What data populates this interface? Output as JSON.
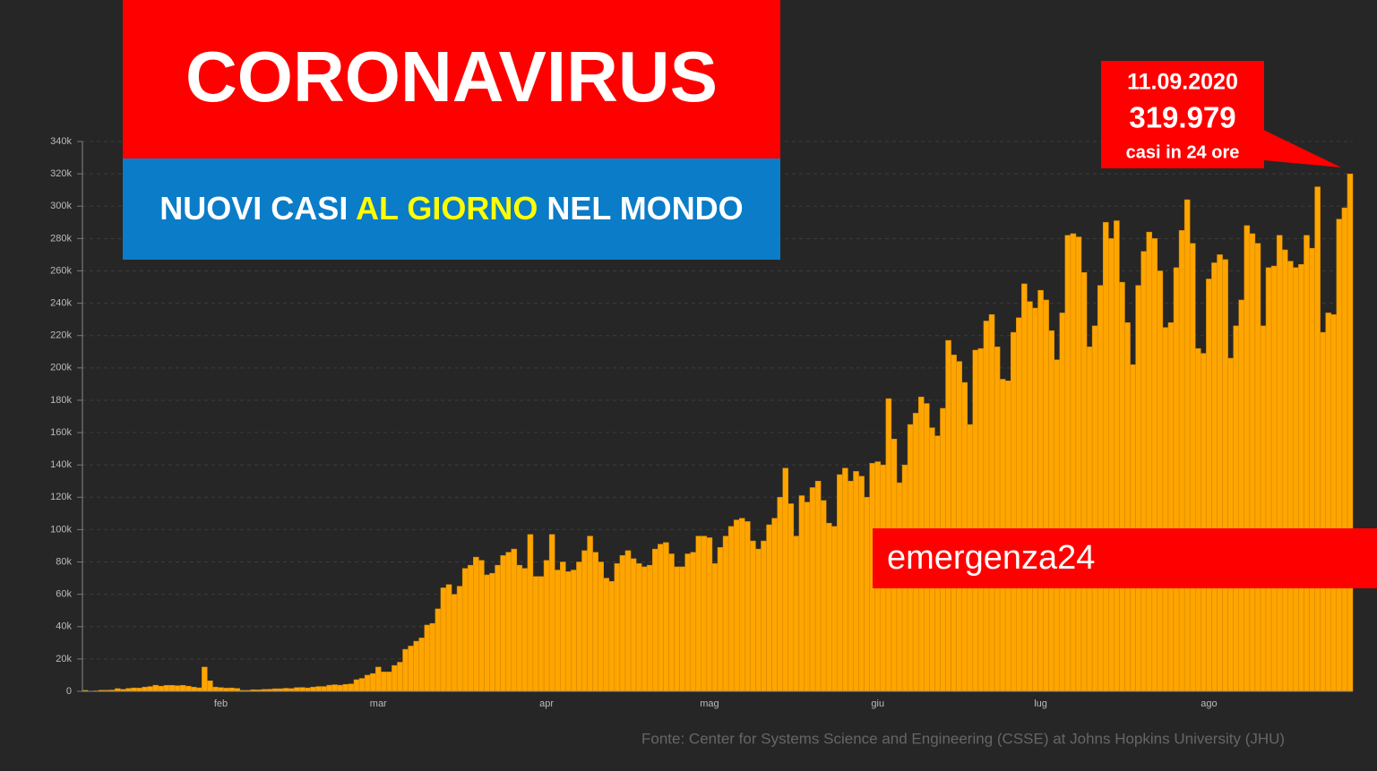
{
  "chart_data": {
    "type": "bar",
    "title": "CORONAVIRUS",
    "subtitle_parts": [
      "NUOVI CASI ",
      "AL GIORNO",
      " NEL MONDO"
    ],
    "annotation": {
      "date": "11.09.2020",
      "label": "319.979",
      "text": "casi in 24 ore"
    },
    "watermark": "emergenza24",
    "source": "Fonte: Center for Systems Science and Engineering (CSSE) at Johns Hopkins University (JHU)",
    "color": "#ffa500",
    "grid": true,
    "ylim": [
      0,
      340000
    ],
    "yticks": [
      0,
      {
        "value": 20000,
        "label": "20k"
      },
      {
        "value": 40000,
        "label": "40k"
      },
      {
        "value": 60000,
        "label": "60k"
      },
      {
        "value": 80000,
        "label": "80k"
      },
      {
        "value": 100000,
        "label": "100k"
      },
      {
        "value": 120000,
        "label": "120k"
      },
      {
        "value": 140000,
        "label": "140k"
      },
      {
        "value": 160000,
        "label": "160k"
      },
      {
        "value": 180000,
        "label": "180k"
      },
      {
        "value": 200000,
        "label": "200k"
      },
      {
        "value": 220000,
        "label": "220k"
      },
      {
        "value": 240000,
        "label": "240k"
      },
      {
        "value": 260000,
        "label": "260k"
      },
      {
        "value": 280000,
        "label": "280k"
      },
      {
        "value": 300000,
        "label": "300k"
      },
      {
        "value": 320000,
        "label": "320k"
      },
      {
        "value": 340000,
        "label": "340k"
      }
    ],
    "categories": [
      null,
      null,
      null,
      null,
      null,
      null,
      null,
      null,
      null,
      null,
      null,
      null,
      null,
      null,
      null,
      null,
      null,
      null,
      null,
      null,
      null,
      null,
      null,
      null,
      null,
      "feb",
      null,
      null,
      null,
      null,
      null,
      null,
      null,
      null,
      null,
      null,
      null,
      null,
      null,
      null,
      null,
      null,
      null,
      null,
      null,
      null,
      null,
      null,
      null,
      null,
      null,
      null,
      null,
      null,
      "mar",
      null,
      null,
      null,
      null,
      null,
      null,
      null,
      null,
      null,
      null,
      null,
      null,
      null,
      null,
      null,
      null,
      null,
      null,
      null,
      null,
      null,
      null,
      null,
      null,
      null,
      null,
      null,
      null,
      null,
      null,
      "apr",
      null,
      null,
      null,
      null,
      null,
      null,
      null,
      null,
      null,
      null,
      null,
      null,
      null,
      null,
      null,
      null,
      null,
      null,
      null,
      null,
      null,
      null,
      null,
      null,
      null,
      null,
      null,
      null,
      null,
      "mag",
      null,
      null,
      null,
      null,
      null,
      null,
      null,
      null,
      null,
      null,
      null,
      null,
      null,
      null,
      null,
      null,
      null,
      null,
      null,
      null,
      null,
      null,
      null,
      null,
      null,
      null,
      null,
      null,
      null,
      null,
      "giu",
      null,
      null,
      null,
      null,
      null,
      null,
      null,
      null,
      null,
      null,
      null,
      null,
      null,
      null,
      null,
      null,
      null,
      null,
      null,
      null,
      null,
      null,
      null,
      null,
      null,
      null,
      null,
      null,
      null,
      "lug",
      null,
      null,
      null,
      null,
      null,
      null,
      null,
      null,
      null,
      null,
      null,
      null,
      null,
      null,
      null,
      null,
      null,
      null,
      null,
      null,
      null,
      null,
      null,
      null,
      null,
      null,
      null,
      null,
      null,
      null,
      "ago",
      null,
      null,
      null,
      null,
      null,
      null,
      null,
      null,
      null,
      null,
      null,
      null,
      null,
      null,
      null,
      null,
      null,
      null,
      null,
      null,
      null,
      null,
      null,
      null,
      null,
      null
    ],
    "values": [
      600,
      100,
      300,
      700,
      700,
      800,
      1700,
      1200,
      1800,
      2100,
      2000,
      2600,
      3000,
      3800,
      3200,
      3700,
      3700,
      3500,
      3700,
      3200,
      2600,
      2200,
      15000,
      6500,
      2600,
      2300,
      2000,
      2100,
      1800,
      600,
      600,
      1000,
      900,
      1200,
      1300,
      1600,
      1600,
      1900,
      1700,
      2300,
      2400,
      2100,
      2600,
      3000,
      3000,
      3800,
      4100,
      3800,
      4300,
      4600,
      7200,
      8000,
      10000,
      11000,
      15000,
      12000,
      12000,
      16000,
      18000,
      26000,
      28000,
      31000,
      33000,
      41000,
      42000,
      51000,
      64000,
      66000,
      60000,
      65000,
      76000,
      78000,
      83000,
      81000,
      72000,
      73000,
      78000,
      84000,
      86000,
      88000,
      78000,
      76000,
      97000,
      71000,
      71000,
      81000,
      97000,
      75000,
      80000,
      74000,
      75000,
      80000,
      87000,
      96000,
      86000,
      80000,
      70000,
      68000,
      79000,
      84000,
      87000,
      82000,
      79000,
      77000,
      78000,
      88000,
      91000,
      92000,
      85000,
      77000,
      77000,
      85000,
      86000,
      96000,
      96000,
      95000,
      79000,
      89000,
      96000,
      102000,
      106000,
      107000,
      105000,
      93000,
      88000,
      93000,
      103000,
      107000,
      120000,
      138000,
      116000,
      96000,
      121000,
      117000,
      126000,
      130000,
      118000,
      104000,
      102000,
      134000,
      138000,
      130000,
      136000,
      133000,
      120000,
      141000,
      142000,
      140000,
      181000,
      156000,
      129000,
      140000,
      165000,
      172000,
      182000,
      178000,
      163000,
      158000,
      175000,
      217000,
      208000,
      204000,
      191000,
      165000,
      211000,
      212000,
      229000,
      233000,
      213000,
      193000,
      192000,
      222000,
      231000,
      252000,
      241000,
      237000,
      248000,
      242000,
      223000,
      205000,
      234000,
      282000,
      283000,
      281000,
      259000,
      213000,
      226000,
      251000,
      290000,
      280000,
      291000,
      253000,
      228000,
      202000,
      251000,
      272000,
      284000,
      280000,
      260000,
      225000,
      228000,
      262000,
      285000,
      304000,
      277000,
      212000,
      209000,
      255000,
      265000,
      270000,
      267000,
      206000,
      226000,
      242000,
      288000,
      283000,
      277000,
      226000,
      262000,
      263000,
      282000,
      273000,
      266000,
      262000,
      264000,
      282000,
      274000,
      312000,
      222000,
      234000,
      233000,
      292000,
      299000,
      319979
    ]
  }
}
